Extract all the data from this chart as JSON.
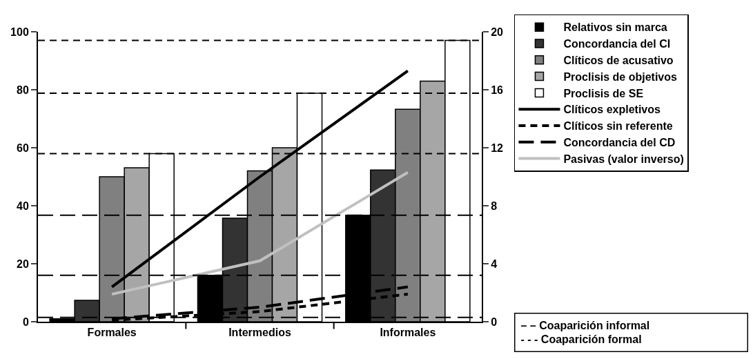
{
  "chart_data": {
    "type": "bar",
    "categories": [
      "Formales",
      "Intermedios",
      "Informales"
    ],
    "series": [
      {
        "name": "Relativos sin marca",
        "color": "#000000",
        "values": [
          1,
          16,
          36.7
        ]
      },
      {
        "name": "Concordancia del CI",
        "color": "#333333",
        "values": [
          7.4,
          35.7,
          52.3
        ]
      },
      {
        "name": "Clíticos de acusativo",
        "color": "#808080",
        "values": [
          50,
          52,
          73.3
        ]
      },
      {
        "name": "Proclisis de objetivos",
        "color": "#a6a6a6",
        "values": [
          53.1,
          60,
          83
        ]
      },
      {
        "name": "Proclisis de SE",
        "color": "#ffffff",
        "values": [
          58,
          78.8,
          97
        ]
      },
      {
        "name": "Clíticos expletivos",
        "type": "line",
        "axis": "y2",
        "color": "#000000",
        "line_style": "solid",
        "values": [
          2.4,
          10,
          17.3
        ]
      },
      {
        "name": "Clíticos sin referente",
        "type": "line",
        "axis": "y2",
        "color": "#000000",
        "line_style": "dotted",
        "values": [
          0.1,
          0.7,
          1.9
        ]
      },
      {
        "name": "Concordancia del CD",
        "type": "line",
        "axis": "y2",
        "color": "#000000",
        "line_style": "dashed",
        "values": [
          0.2,
          1,
          2.4
        ]
      },
      {
        "name": "Pasivas (valor inverso)",
        "type": "line",
        "axis": "y2",
        "color": "#c0c0c0",
        "line_style": "solid",
        "values": [
          1.9,
          4.2,
          10.3
        ]
      }
    ],
    "ylim": [
      0,
      100
    ],
    "yticks": [
      0,
      20,
      40,
      60,
      80,
      100
    ],
    "y2lim": [
      0,
      20
    ],
    "y2ticks": [
      0,
      4,
      8,
      12,
      16,
      20
    ],
    "ref_lines": [
      {
        "axis": "y",
        "value": 97,
        "line_style": "dotted",
        "color": "#000000"
      },
      {
        "axis": "y",
        "value": 78.8,
        "line_style": "dotted",
        "color": "#000000"
      },
      {
        "axis": "y",
        "value": 58,
        "line_style": "dotted",
        "color": "#000000"
      },
      {
        "axis": "y",
        "value": 36.7,
        "line_style": "dashed",
        "color": "#000000"
      },
      {
        "axis": "y",
        "value": 16,
        "line_style": "dashed",
        "color": "#000000"
      },
      {
        "axis": "y",
        "value": 1.5,
        "line_style": "dashed",
        "color": "#000000"
      }
    ],
    "annotations": [
      "– – Coaparición informal",
      "- - - Coaparición formal"
    ],
    "grid": false,
    "legend": "right",
    "marker": "none"
  }
}
